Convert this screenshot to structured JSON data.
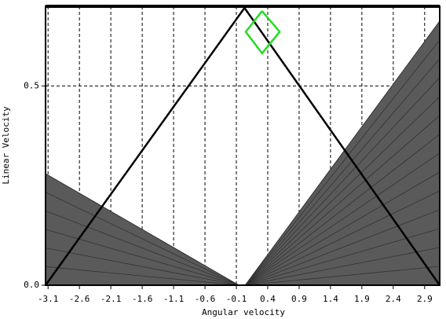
{
  "chart_data": {
    "type": "polygon",
    "xlabel": "Angular velocity",
    "ylabel": "Linear Velocity",
    "xlim": [
      -3.14,
      3.14
    ],
    "ylim": [
      0,
      0.7
    ],
    "xticks": [
      -3.1,
      -2.6,
      -2.1,
      -1.6,
      -1.1,
      -0.6,
      -0.1,
      0.4,
      0.9,
      1.4,
      1.9,
      2.4,
      2.9
    ],
    "yticks": [
      {
        "value": 0,
        "label": "0.0"
      },
      0.5
    ],
    "grid": true,
    "series": [
      {
        "shape": "polygon",
        "color": "#5a5a5a",
        "x": [
          -3.14,
          -0.06,
          -3.14
        ],
        "y": [
          0.28,
          0,
          0
        ]
      },
      {
        "shape": "polygon",
        "color": "#5a5a5a",
        "x": [
          0.04,
          3.14,
          3.14
        ],
        "y": [
          0,
          0.663,
          0
        ]
      },
      {
        "shape": "line",
        "color": "#000000",
        "x": [
          -3.14,
          0.03,
          3.14
        ],
        "y": [
          0,
          0.696,
          0
        ]
      },
      {
        "shape": "line",
        "color": "#22dd22",
        "x": [
          0.31,
          0.59,
          0.31,
          0.05,
          0.31
        ],
        "y": [
          0.688,
          0.636,
          0.582,
          0.636,
          0.688
        ]
      }
    ]
  }
}
